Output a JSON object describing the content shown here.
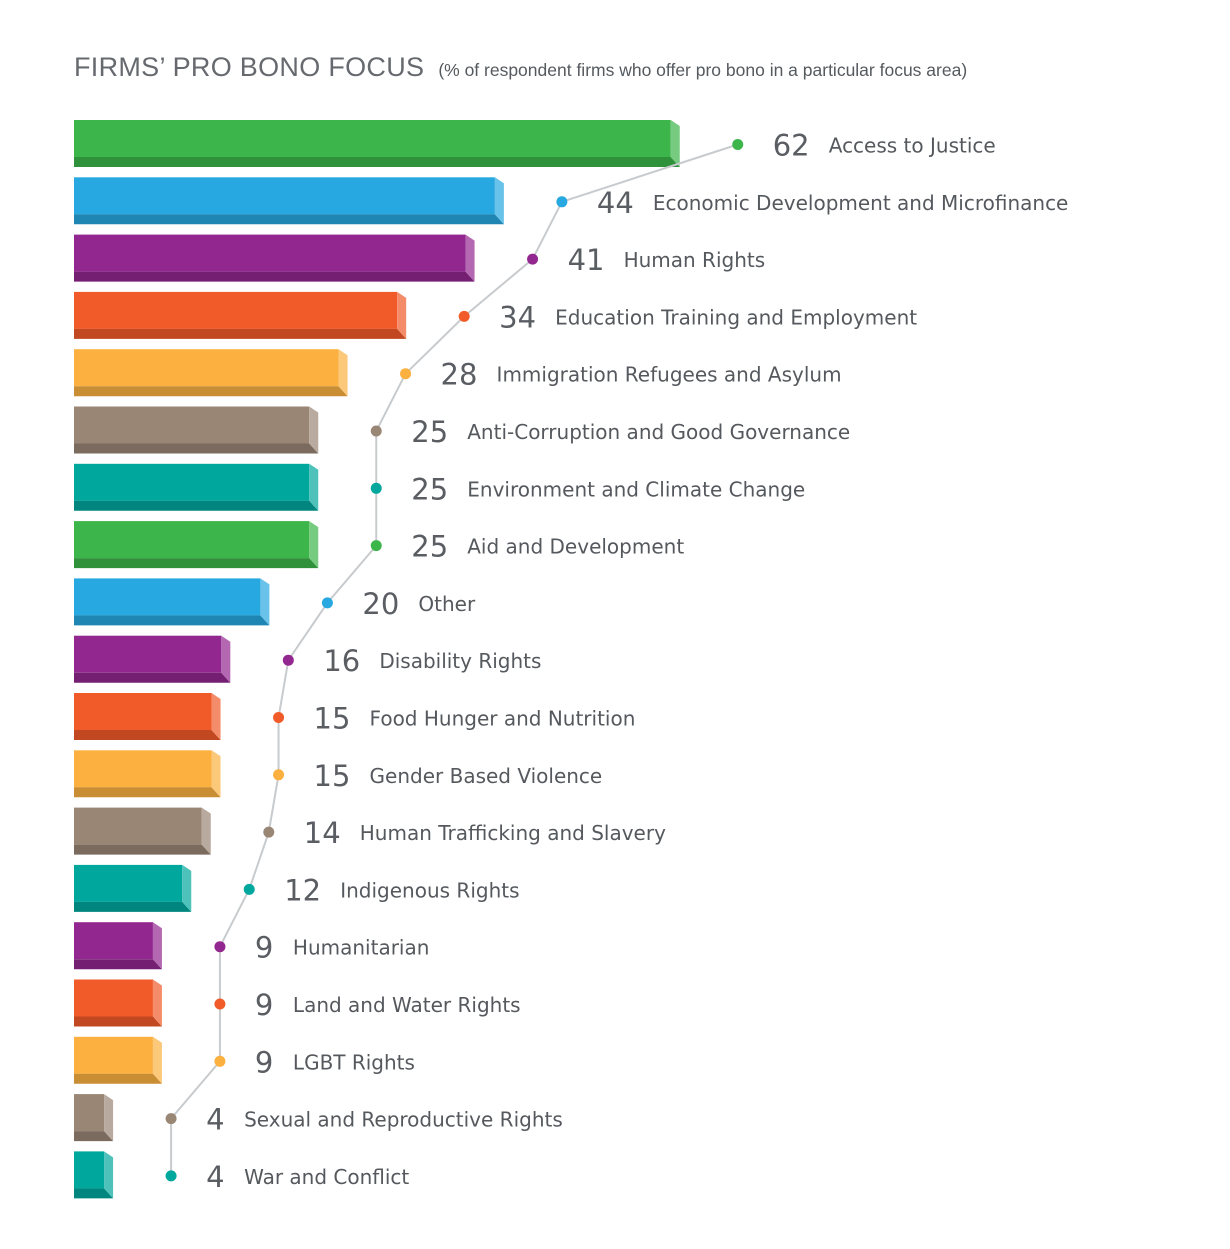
{
  "chart_data": {
    "type": "bar",
    "orientation": "horizontal",
    "title": "FIRMS’ PRO BONO FOCUS",
    "subtitle": "(% of respondent firms who offer pro bono in a particular focus area)",
    "categories": [
      "Access to Justice",
      "Economic Development and Microfinance",
      "Human Rights",
      "Education Training and Employment",
      "Immigration Refugees and Asylum",
      "Anti-Corruption and Good Governance",
      "Environment and Climate Change",
      "Aid and Development",
      "Other",
      "Disability Rights",
      "Food Hunger and Nutrition",
      "Gender Based Violence",
      "Human Trafficking and Slavery",
      "Indigenous Rights",
      "Humanitarian",
      "Land and Water Rights",
      "LGBT Rights",
      "Sexual and Reproductive Rights",
      "War and Conflict"
    ],
    "values": [
      62,
      44,
      41,
      34,
      28,
      25,
      25,
      25,
      20,
      16,
      15,
      15,
      14,
      12,
      9,
      9,
      9,
      4,
      4
    ],
    "value_labels": [
      "62",
      "44",
      "41",
      "34",
      "28",
      "25",
      "25",
      "25",
      "20",
      "16",
      "15",
      "15",
      "14",
      "12",
      "9",
      "9",
      "9",
      "4",
      "4"
    ],
    "colors": [
      "#3cb54a",
      "#27a8e0",
      "#92278f",
      "#f15a29",
      "#fbb040",
      "#998675",
      "#00a79d",
      "#3cb54a",
      "#27a8e0",
      "#92278f",
      "#f15a29",
      "#fbb040",
      "#998675",
      "#00a79d",
      "#92278f",
      "#f15a29",
      "#fbb040",
      "#998675",
      "#00a79d"
    ],
    "connector_color": "#c8cbce",
    "grid": false,
    "legend": "none"
  }
}
